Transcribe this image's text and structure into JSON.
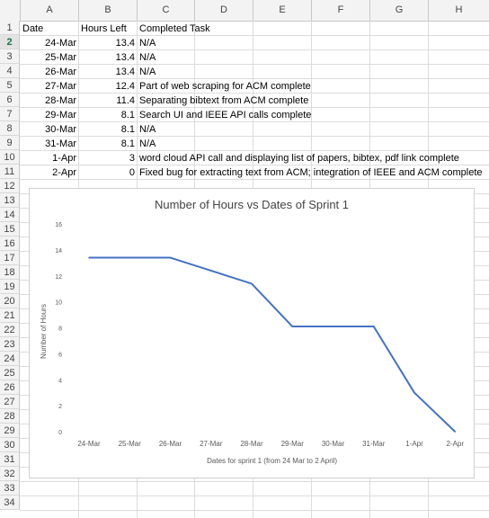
{
  "columns": [
    "A",
    "B",
    "C",
    "D",
    "E",
    "F",
    "G",
    "H"
  ],
  "rows": [
    "1",
    "2",
    "3",
    "4",
    "5",
    "6",
    "7",
    "8",
    "9",
    "10",
    "11",
    "12",
    "13",
    "14",
    "15",
    "16",
    "17",
    "18",
    "19",
    "20",
    "21",
    "22",
    "23",
    "24",
    "25",
    "26",
    "27",
    "28",
    "29",
    "30",
    "31",
    "32",
    "33",
    "34"
  ],
  "selected_row": "2",
  "table": {
    "headers": [
      "Date",
      "Hours Left",
      "Completed Task"
    ],
    "rows": [
      {
        "date": "24-Mar",
        "hours": "13.4",
        "task": "N/A"
      },
      {
        "date": "25-Mar",
        "hours": "13.4",
        "task": "N/A"
      },
      {
        "date": "26-Mar",
        "hours": "13.4",
        "task": "N/A"
      },
      {
        "date": "27-Mar",
        "hours": "12.4",
        "task": "Part of web scraping for ACM complete"
      },
      {
        "date": "28-Mar",
        "hours": "11.4",
        "task": "Separating bibtext from ACM complete"
      },
      {
        "date": "29-Mar",
        "hours": "8.1",
        "task": "Search UI and IEEE API calls complete"
      },
      {
        "date": "30-Mar",
        "hours": "8.1",
        "task": "N/A"
      },
      {
        "date": "31-Mar",
        "hours": "8.1",
        "task": "N/A"
      },
      {
        "date": "1-Apr",
        "hours": "3",
        "task": "word cloud API call and displaying list of papers, bibtex, pdf link complete"
      },
      {
        "date": "2-Apr",
        "hours": "0",
        "task": "Fixed bug for extracting text from ACM; integration of IEEE and ACM complete"
      }
    ]
  },
  "chart_data": {
    "type": "line",
    "title": "Number of Hours vs Dates of Sprint 1",
    "xlabel": "Dates for sprint 1 (from 24 Mar to 2 April)",
    "ylabel": "Number of Hours",
    "categories": [
      "24-Mar",
      "25-Mar",
      "26-Mar",
      "27-Mar",
      "28-Mar",
      "29-Mar",
      "30-Mar",
      "31-Mar",
      "1-Apr",
      "2-Apr"
    ],
    "series": [
      {
        "values": [
          13.4,
          13.4,
          13.4,
          12.4,
          11.4,
          8.1,
          8.1,
          8.1,
          3,
          0
        ]
      }
    ],
    "ylim": [
      0,
      16
    ],
    "yticks": [
      "0",
      "2",
      "4",
      "6",
      "8",
      "10",
      "12",
      "14",
      "16"
    ],
    "grid": false,
    "line_color": "#4472c4"
  }
}
